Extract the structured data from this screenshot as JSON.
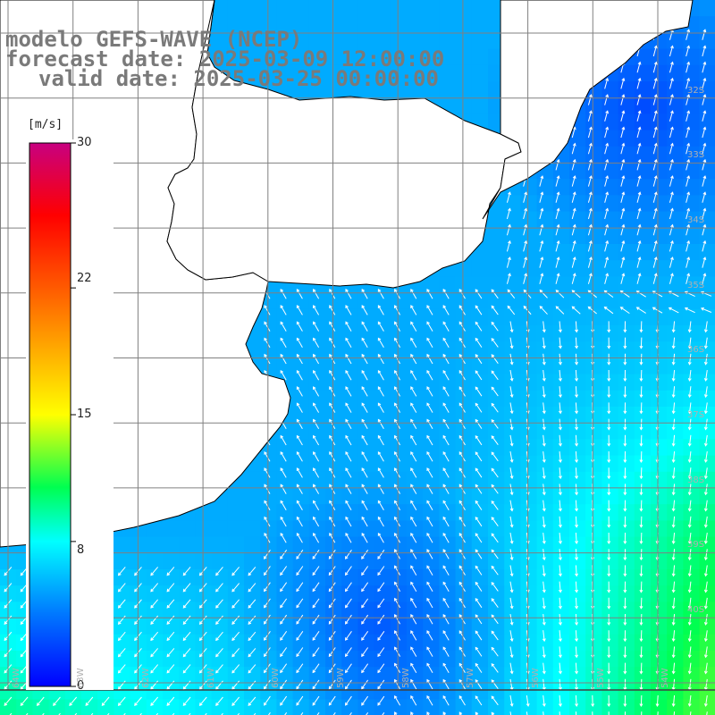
{
  "title": {
    "line1": "modelo GEFS-WAVE (NCEP)",
    "line2": "forecast date: 2025-03-09 12:00:00",
    "line3": "valid date: 2025-03-25 00:00:00"
  },
  "colorbar": {
    "unit": "[m/s]",
    "ticks": [
      "30",
      "22",
      "15",
      "8",
      "0"
    ],
    "tick_values": [
      30,
      22,
      15,
      8,
      0
    ],
    "min": 0,
    "max": 30,
    "colors": [
      "#0000ff",
      "#00a0ff",
      "#00ffff",
      "#00ff40",
      "#20c000",
      "#ffff00",
      "#ff8000",
      "#ff0000",
      "#c00080"
    ]
  },
  "map": {
    "lat_labels": [
      "32S",
      "33S",
      "34S",
      "35S",
      "36S",
      "37S",
      "38S",
      "39S",
      "40S"
    ],
    "lon_labels": [
      "64W",
      "63W",
      "62W",
      "61W",
      "60W",
      "59W",
      "58W",
      "57W",
      "56W",
      "55W",
      "54W"
    ],
    "land_color": "#ffffff",
    "grid_color": "#808080",
    "coast_color": "#000000",
    "arrow_color": "#ffffff"
  }
}
